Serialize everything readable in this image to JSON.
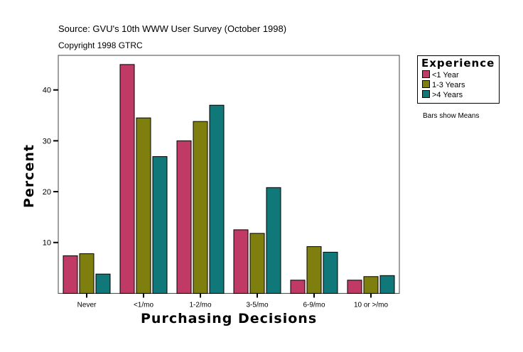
{
  "chart_data": {
    "type": "bar",
    "title": "Source: GVU's 10th WWW User Survey (October 1998)",
    "subtitle": "Copyright 1998 GTRC",
    "xlabel": "Purchasing Decisions",
    "ylabel": "Percent",
    "categories": [
      "Never",
      "<1/mo",
      "1-2/mo",
      "3-5/mo",
      "6-9/mo",
      "10 or >/mo"
    ],
    "yticks": [
      10,
      20,
      30,
      40
    ],
    "ylim": [
      0,
      46.8
    ],
    "grid": false,
    "legend": {
      "title": "Experience",
      "placement": "right"
    },
    "note": "Bars show Means",
    "series": [
      {
        "name": "<1 Year",
        "color": "#bf3a64",
        "values": [
          7.4,
          45.0,
          30.0,
          12.5,
          2.6,
          2.6
        ]
      },
      {
        "name": "1-3 Years",
        "color": "#7f7f10",
        "values": [
          7.8,
          34.5,
          33.8,
          11.8,
          9.2,
          3.3
        ]
      },
      {
        "name": ">4 Years",
        "color": "#107878",
        "values": [
          3.8,
          26.9,
          37.0,
          20.8,
          8.1,
          3.5
        ]
      }
    ]
  }
}
